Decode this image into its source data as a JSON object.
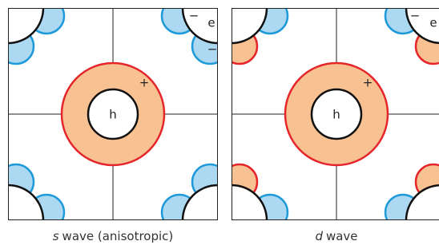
{
  "panels": [
    {
      "center_label": "h",
      "ring_sign": "+",
      "corner_label": "e",
      "corner_signs": [
        "−",
        "−"
      ],
      "caption": {
        "italic": "s",
        "rest": "wave (anisotropic)"
      }
    },
    {
      "center_label": "h",
      "ring_sign": "+",
      "corner_label": "e",
      "corner_signs": [
        "−"
      ],
      "caption": {
        "italic": "d",
        "rest": "wave"
      }
    }
  ]
}
